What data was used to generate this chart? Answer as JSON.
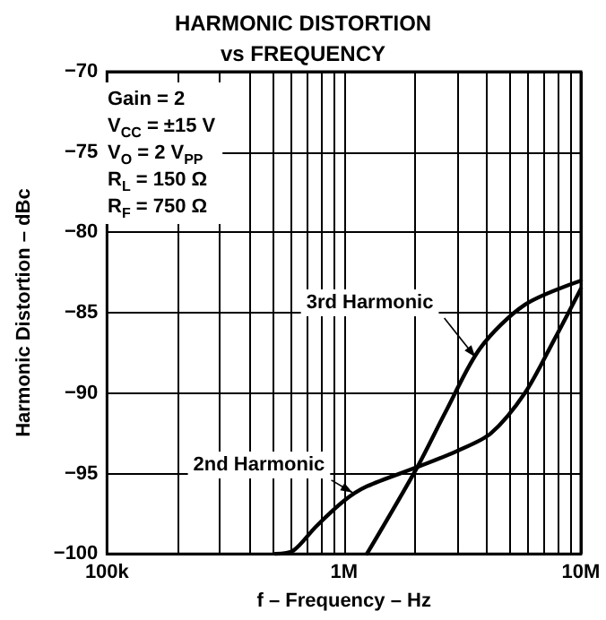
{
  "chart_data": {
    "type": "line",
    "title": "HARMONIC DISTORTION",
    "subtitle": "vs FREQUENCY",
    "xlabel": "f – Frequency – Hz",
    "ylabel": "Harmonic Distortion – dBc",
    "annotations": [
      "Gain = 2",
      "V$_{CC}$ = ±15 V",
      "V$_{O}$ = 2 V$_{PP}$",
      "R$_{L}$ = 150 Ω",
      "R$_{F}$ = 750 Ω"
    ],
    "series": [
      {
        "name": "2nd Harmonic",
        "color": "#000000",
        "x": [
          513000,
          611000,
          762000,
          1000000,
          1250000,
          2040000,
          3000000,
          4170000,
          5800000,
          7700000,
          10000000
        ],
        "values": [
          -100,
          -99.8,
          -98.3,
          -96.7,
          -95.8,
          -94.6,
          -93.6,
          -92.5,
          -90,
          -86.7,
          -83.5
        ]
      },
      {
        "name": "3rd Harmonic",
        "color": "#000000",
        "x": [
          1250000,
          2040000,
          2700000,
          3760000,
          5800000,
          10000000
        ],
        "values": [
          -100,
          -94.6,
          -91.1,
          -87.2,
          -84.5,
          -83
        ]
      }
    ],
    "log": "x",
    "xlim": [
      100000,
      10000000
    ],
    "ylim": [
      -100,
      -70
    ],
    "xticks": [
      {
        "value": 100000,
        "label": "100k"
      },
      {
        "value": 200000,
        "label": null
      },
      {
        "value": 300000,
        "label": null
      },
      {
        "value": 400000,
        "label": null
      },
      {
        "value": 500000,
        "label": null
      },
      {
        "value": 600000,
        "label": null
      },
      {
        "value": 700000,
        "label": null
      },
      {
        "value": 800000,
        "label": null
      },
      {
        "value": 900000,
        "label": null
      },
      {
        "value": 1000000,
        "label": "1M"
      },
      {
        "value": 2000000,
        "label": null
      },
      {
        "value": 3000000,
        "label": null
      },
      {
        "value": 4000000,
        "label": null
      },
      {
        "value": 5000000,
        "label": null
      },
      {
        "value": 6000000,
        "label": null
      },
      {
        "value": 7000000,
        "label": null
      },
      {
        "value": 8000000,
        "label": null
      },
      {
        "value": 9000000,
        "label": null
      },
      {
        "value": 10000000,
        "label": "10M"
      }
    ],
    "yticks": [
      -100,
      -95,
      -90,
      -85,
      -80,
      -75,
      -70
    ],
    "grid": true,
    "marker": "none",
    "line_style": "solid",
    "legend": false
  }
}
